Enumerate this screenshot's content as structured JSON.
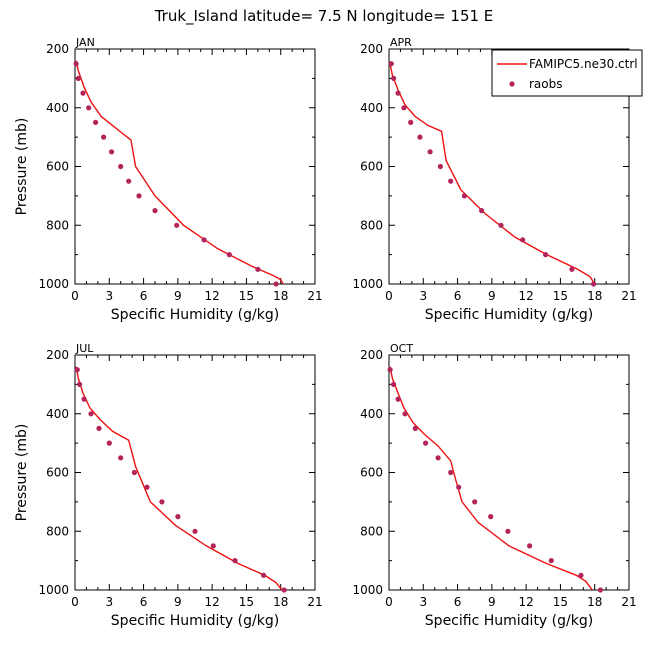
{
  "title": "Truk_Island   latitude= 7.5 N longitude= 151 E",
  "legend": [
    {
      "label": "FAMIPC5.ne30.ctrl",
      "color": "#ee1111",
      "type": "line"
    },
    {
      "label": "raobs",
      "color": "#b3245a",
      "type": "marker"
    }
  ],
  "chart_data": [
    {
      "type": "line",
      "panel": "JAN",
      "xlabel": "Specific Humidity (g/kg)",
      "ylabel": "Pressure (mb)",
      "xlim": [
        0,
        21
      ],
      "ylim": [
        1000,
        200
      ],
      "xticks": [
        0,
        3,
        6,
        9,
        12,
        15,
        18,
        21
      ],
      "yticks": [
        200,
        400,
        600,
        800,
        1000
      ],
      "series": [
        {
          "name": "FAMIPC5.ne30.ctrl",
          "style": "line",
          "x": [
            0.1,
            0.3,
            0.8,
            1.4,
            2.3,
            3.6,
            4.9,
            5.3,
            7.0,
            9.5,
            12.5,
            15.5,
            17.3,
            18.0,
            18.2
          ],
          "y": [
            240,
            275,
            330,
            380,
            430,
            470,
            510,
            600,
            700,
            800,
            880,
            940,
            970,
            985,
            1000
          ]
        },
        {
          "name": "raobs",
          "style": "marker",
          "x": [
            0.1,
            0.3,
            0.7,
            1.2,
            1.8,
            2.5,
            3.2,
            4.0,
            4.7,
            5.6,
            7.0,
            8.9,
            11.3,
            13.5,
            16.0,
            17.6
          ],
          "y": [
            250,
            300,
            350,
            400,
            450,
            500,
            550,
            600,
            650,
            700,
            750,
            800,
            850,
            900,
            950,
            1000
          ]
        }
      ]
    },
    {
      "type": "line",
      "panel": "APR",
      "xlabel": "Specific Humidity (g/kg)",
      "ylabel": "",
      "xlim": [
        0,
        21
      ],
      "ylim": [
        1000,
        200
      ],
      "xticks": [
        0,
        3,
        6,
        9,
        12,
        15,
        18,
        21
      ],
      "yticks": [
        200,
        400,
        600,
        800,
        1000
      ],
      "series": [
        {
          "name": "FAMIPC5.ne30.ctrl",
          "style": "line",
          "x": [
            0.1,
            0.3,
            0.8,
            1.4,
            2.3,
            3.4,
            4.6,
            5.0,
            6.3,
            8.4,
            11.0,
            13.8,
            16.5,
            17.6,
            18.0
          ],
          "y": [
            250,
            290,
            340,
            390,
            430,
            460,
            480,
            580,
            680,
            760,
            840,
            900,
            950,
            975,
            1000
          ]
        },
        {
          "name": "raobs",
          "style": "marker",
          "x": [
            0.2,
            0.4,
            0.8,
            1.3,
            1.9,
            2.7,
            3.6,
            4.5,
            5.4,
            6.6,
            8.1,
            9.8,
            11.7,
            13.7,
            16.0,
            17.9
          ],
          "y": [
            250,
            300,
            350,
            400,
            450,
            500,
            550,
            600,
            650,
            700,
            750,
            800,
            850,
            900,
            950,
            1000
          ]
        }
      ]
    },
    {
      "type": "line",
      "panel": "JUL",
      "xlabel": "Specific Humidity (g/kg)",
      "ylabel": "Pressure (mb)",
      "xlim": [
        0,
        21
      ],
      "ylim": [
        1000,
        200
      ],
      "xticks": [
        0,
        3,
        6,
        9,
        12,
        15,
        18,
        21
      ],
      "yticks": [
        200,
        400,
        600,
        800,
        1000
      ],
      "series": [
        {
          "name": "FAMIPC5.ne30.ctrl",
          "style": "line",
          "x": [
            0.1,
            0.3,
            0.7,
            1.3,
            2.2,
            3.3,
            4.7,
            5.3,
            6.6,
            8.8,
            11.5,
            14.3,
            16.6,
            17.6,
            18.1
          ],
          "y": [
            240,
            280,
            330,
            380,
            420,
            460,
            490,
            580,
            700,
            780,
            850,
            910,
            950,
            975,
            1000
          ]
        },
        {
          "name": "raobs",
          "style": "marker",
          "x": [
            0.2,
            0.4,
            0.8,
            1.4,
            2.1,
            3.0,
            4.0,
            5.2,
            6.3,
            7.6,
            9.0,
            10.5,
            12.1,
            14.0,
            16.5,
            18.3
          ],
          "y": [
            250,
            300,
            350,
            400,
            450,
            500,
            550,
            600,
            650,
            700,
            750,
            800,
            850,
            900,
            950,
            1000
          ]
        }
      ]
    },
    {
      "type": "line",
      "panel": "OCT",
      "xlabel": "Specific Humidity (g/kg)",
      "ylabel": "",
      "xlim": [
        0,
        21
      ],
      "ylim": [
        1000,
        200
      ],
      "xticks": [
        0,
        3,
        6,
        9,
        12,
        15,
        18,
        21
      ],
      "yticks": [
        200,
        400,
        600,
        800,
        1000
      ],
      "series": [
        {
          "name": "FAMIPC5.ne30.ctrl",
          "style": "line",
          "x": [
            0.1,
            0.3,
            0.8,
            1.3,
            2.1,
            3.1,
            4.3,
            5.4,
            5.8,
            6.4,
            7.8,
            10.5,
            13.8,
            16.4,
            17.2,
            17.8
          ],
          "y": [
            240,
            280,
            330,
            380,
            430,
            470,
            510,
            560,
            620,
            700,
            770,
            850,
            910,
            950,
            970,
            1000
          ]
        },
        {
          "name": "raobs",
          "style": "marker",
          "x": [
            0.1,
            0.4,
            0.8,
            1.4,
            2.3,
            3.2,
            4.3,
            5.4,
            6.1,
            7.5,
            8.9,
            10.4,
            12.3,
            14.2,
            16.8,
            18.5
          ],
          "y": [
            250,
            300,
            350,
            400,
            450,
            500,
            550,
            600,
            650,
            700,
            750,
            800,
            850,
            900,
            950,
            1000
          ]
        }
      ]
    }
  ]
}
